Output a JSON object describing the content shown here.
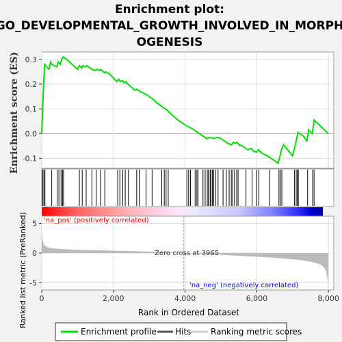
{
  "title_line1": "Enrichment plot:",
  "title_line2": "GO_DEVELOPMENTAL_GROWTH_INVOLVED_IN_MORPH",
  "title_line3": "OGENESIS",
  "colors": {
    "es_line": "#00dd00",
    "hits": "#000000",
    "metric_fill": "#bbbbbb",
    "pos_label": "#ff0000",
    "neg_label": "#0000ff",
    "zero_line": "#999999"
  },
  "chart_data": [
    {
      "type": "line",
      "panel": "enrichment-profile",
      "ylabel": "Enrichment score (ES)",
      "ylim": [
        -0.14,
        0.33
      ],
      "xlim": [
        0,
        8150
      ],
      "y_ticks": [
        "0.3",
        "0.2",
        "0.1",
        "0.0",
        "-0.1"
      ],
      "y_tick_values": [
        0.3,
        0.2,
        0.1,
        0.0,
        -0.1
      ],
      "grid": true,
      "series": [
        {
          "name": "Enrichment profile",
          "x": [
            0,
            50,
            80,
            200,
            250,
            280,
            420,
            460,
            520,
            560,
            600,
            700,
            1000,
            1050,
            1120,
            1150,
            1230,
            1260,
            1400,
            1500,
            1550,
            1620,
            1650,
            1750,
            1780,
            1900,
            2100,
            2150,
            2200,
            2250,
            2300,
            2350,
            2400,
            2450,
            2600,
            2650,
            2700,
            2750,
            2900,
            3000,
            3100,
            3200,
            3300,
            3400,
            3500,
            3600,
            3800,
            4000,
            4200,
            4300,
            4400,
            4500,
            4600,
            4700,
            4800,
            4900,
            5000,
            5100,
            5200,
            5300,
            5350,
            5400,
            5450,
            5500,
            5600,
            5700,
            5750,
            5850,
            5900,
            6000,
            6050,
            6150,
            6300,
            6400,
            6500,
            6600,
            6650,
            6700,
            6750,
            7000,
            7050,
            7100,
            7150,
            7300,
            7400,
            7450,
            7550,
            7600,
            8000
          ],
          "y": [
            0.0,
            0.19,
            0.28,
            0.26,
            0.29,
            0.28,
            0.27,
            0.29,
            0.28,
            0.3,
            0.31,
            0.3,
            0.26,
            0.275,
            0.265,
            0.275,
            0.27,
            0.275,
            0.26,
            0.255,
            0.26,
            0.255,
            0.26,
            0.245,
            0.25,
            0.24,
            0.21,
            0.22,
            0.21,
            0.215,
            0.205,
            0.21,
            0.2,
            0.195,
            0.175,
            0.18,
            0.175,
            0.17,
            0.16,
            0.15,
            0.14,
            0.125,
            0.115,
            0.105,
            0.095,
            0.08,
            0.055,
            0.035,
            0.02,
            0.01,
            0.0,
            -0.01,
            -0.02,
            -0.015,
            -0.02,
            -0.015,
            -0.02,
            -0.03,
            -0.04,
            -0.045,
            -0.035,
            -0.04,
            -0.035,
            -0.045,
            -0.05,
            -0.06,
            -0.065,
            -0.06,
            -0.07,
            -0.075,
            -0.065,
            -0.08,
            -0.09,
            -0.1,
            -0.11,
            -0.12,
            -0.09,
            -0.06,
            -0.045,
            -0.09,
            -0.06,
            -0.03,
            0.005,
            -0.01,
            -0.03,
            0.015,
            0.0,
            0.055,
            0.0
          ]
        }
      ]
    },
    {
      "type": "scatter",
      "panel": "hits",
      "name": "Hits",
      "xlim": [
        0,
        8150
      ],
      "x": [
        30,
        60,
        90,
        280,
        430,
        480,
        540,
        580,
        610,
        1050,
        1130,
        1240,
        1400,
        1520,
        1640,
        1760,
        2120,
        2180,
        2260,
        2330,
        2420,
        2650,
        2720,
        2910,
        3080,
        3350,
        3420,
        3470,
        3530,
        4050,
        4100,
        4150,
        4280,
        4330,
        4360,
        4500,
        4560,
        4620,
        4650,
        4700,
        4720,
        4760,
        4800,
        4850,
        4920,
        5060,
        5150,
        5230,
        5290,
        5330,
        5380,
        5440,
        5480,
        5700,
        5870,
        6000,
        6060,
        6350,
        6620,
        6660,
        6700,
        7050,
        7100,
        7130,
        7160,
        7420,
        7560,
        7600
      ]
    },
    {
      "type": "area",
      "panel": "ranked-list-metric",
      "ylabel": "Ranked list metric (PreRanked)",
      "xlabel": "Rank in Ordered Dataset",
      "ylim": [
        -6.2,
        6.2
      ],
      "xlim": [
        0,
        8150
      ],
      "x_ticks": [
        "0",
        "2,000",
        "4,000",
        "6,000",
        "8,000"
      ],
      "x_tick_values": [
        0,
        2000,
        4000,
        6000,
        8000
      ],
      "y_ticks": [
        "5",
        "0",
        "-5"
      ],
      "y_tick_values": [
        5,
        0,
        -5
      ],
      "grid": true,
      "series": [
        {
          "name": "Ranking metric scores",
          "x": [
            0,
            10,
            30,
            60,
            100,
            150,
            250,
            400,
            600,
            1000,
            2000,
            3000,
            3965,
            4500,
            5000,
            6000,
            6500,
            7000,
            7300,
            7500,
            7700,
            7800,
            7900,
            7950,
            7980,
            8000
          ],
          "y": [
            5.0,
            3.0,
            2.0,
            1.5,
            1.2,
            1.0,
            0.85,
            0.75,
            0.65,
            0.55,
            0.4,
            0.25,
            0.0,
            -0.15,
            -0.3,
            -0.6,
            -0.8,
            -1.05,
            -1.25,
            -1.45,
            -1.75,
            -2.0,
            -2.6,
            -3.4,
            -4.5,
            -6.0
          ]
        }
      ],
      "zero_cross_label": "Zero cross at 3965",
      "zero_cross": 3965,
      "pos_label": "'na_pos' (positively correlated)",
      "neg_label": "'na_neg' (negatively correlated)"
    }
  ],
  "legend": {
    "items": [
      {
        "label": "Enrichment profile",
        "color": "#00dd00"
      },
      {
        "label": "Hits",
        "color": "#555555"
      },
      {
        "label": "Ranking metric scores",
        "color": "#cccccc"
      }
    ]
  }
}
